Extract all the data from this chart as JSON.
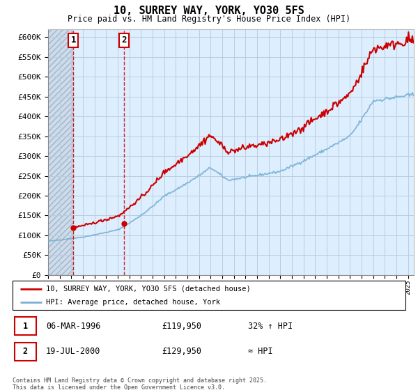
{
  "title": "10, SURREY WAY, YORK, YO30 5FS",
  "subtitle": "Price paid vs. HM Land Registry's House Price Index (HPI)",
  "ylim": [
    0,
    620000
  ],
  "yticks": [
    0,
    50000,
    100000,
    150000,
    200000,
    250000,
    300000,
    350000,
    400000,
    450000,
    500000,
    550000,
    600000
  ],
  "ytick_labels": [
    "£0",
    "£50K",
    "£100K",
    "£150K",
    "£200K",
    "£250K",
    "£300K",
    "£350K",
    "£400K",
    "£450K",
    "£500K",
    "£550K",
    "£600K"
  ],
  "hpi_color": "#7ab0d4",
  "price_color": "#cc0000",
  "background_color": "#ddeeff",
  "grid_color": "#bbccdd",
  "hatch_color": "#aabbcc",
  "sale1_date": 1996.18,
  "sale1_price": 119950,
  "sale1_label": "1",
  "sale2_date": 2000.55,
  "sale2_price": 129950,
  "sale2_label": "2",
  "vline_color": "#cc0000",
  "legend_line1": "10, SURREY WAY, YORK, YO30 5FS (detached house)",
  "legend_line2": "HPI: Average price, detached house, York",
  "table_row1": [
    "1",
    "06-MAR-1996",
    "£119,950",
    "32% ↑ HPI"
  ],
  "table_row2": [
    "2",
    "19-JUL-2000",
    "£129,950",
    "≈ HPI"
  ],
  "footer": "Contains HM Land Registry data © Crown copyright and database right 2025.\nThis data is licensed under the Open Government Licence v3.0.",
  "xmin": 1994,
  "xmax": 2025.5,
  "title_fontsize": 11,
  "subtitle_fontsize": 8.5
}
